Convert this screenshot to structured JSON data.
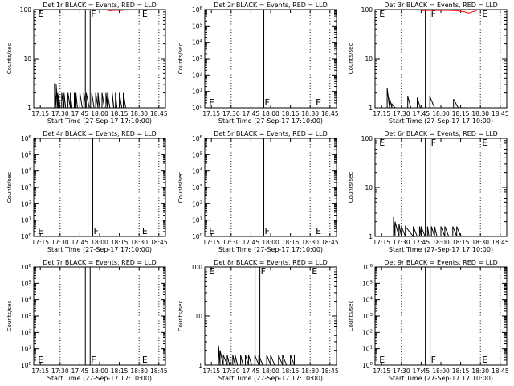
{
  "colors": {
    "events": "#000000",
    "lld": "#ff0000",
    "background": "#ffffff"
  },
  "chart_data": [
    {
      "type": "line",
      "title": "Det 1r  BLACK = Events, RED = LLD",
      "xlabel": "Start Time (27-Sep-17 17:10:00)",
      "ylabel": "Counts/sec",
      "xticks": [
        "17:15",
        "17:30",
        "17:45",
        "18:00",
        "18:15",
        "18:30",
        "18:45"
      ],
      "yscale": "log",
      "ylim": [
        1,
        100
      ],
      "yticks": [
        "1",
        "10",
        "100"
      ],
      "markers": [
        {
          "label": "E",
          "time": "17:12"
        },
        {
          "label": "F",
          "time": "17:51"
        },
        {
          "label": "E",
          "time": "18:31"
        }
      ],
      "events": [
        [
          17.43,
          3.2
        ],
        [
          17.43,
          2.6
        ],
        [
          17.45,
          3.0
        ],
        [
          17.47,
          2.0
        ],
        [
          17.48,
          1.8
        ],
        [
          17.5,
          1.0
        ],
        [
          17.52,
          2.0
        ],
        [
          17.55,
          2.0
        ],
        [
          17.57,
          1.0
        ],
        [
          17.6,
          2.0
        ],
        [
          17.63,
          2.0
        ],
        [
          17.65,
          1.0
        ],
        [
          17.68,
          2.0
        ],
        [
          17.7,
          2.0
        ],
        [
          17.72,
          1.0
        ],
        [
          17.75,
          2.0
        ],
        [
          17.78,
          1.0
        ],
        [
          17.8,
          2.0
        ],
        [
          17.83,
          2.0
        ],
        [
          17.87,
          1.0
        ],
        [
          17.9,
          2.0
        ],
        [
          17.93,
          1.0
        ],
        [
          17.95,
          2.0
        ],
        [
          17.98,
          2.0
        ],
        [
          18.0,
          1.0
        ],
        [
          18.03,
          2.0
        ],
        [
          18.06,
          1.0
        ],
        [
          18.08,
          2.0
        ],
        [
          18.1,
          2.0
        ],
        [
          18.13,
          1.0
        ],
        [
          18.16,
          2.0
        ],
        [
          18.18,
          1.0
        ],
        [
          18.2,
          2.0
        ],
        [
          18.22,
          1.0
        ],
        [
          18.25,
          2.0
        ],
        [
          18.28,
          1.0
        ],
        [
          18.3,
          2.0
        ],
        [
          18.33,
          1.0
        ]
      ],
      "lld": [
        [
          18.1,
          100
        ],
        [
          18.14,
          95
        ],
        [
          18.18,
          100
        ],
        [
          18.22,
          97
        ],
        [
          18.26,
          100
        ],
        [
          18.3,
          100
        ]
      ]
    },
    {
      "type": "line",
      "title": "Det 2r  BLACK = Events, RED = LLD",
      "xlabel": "Start Time (27-Sep-17 17:10:00)",
      "ylabel": "Counts/sec",
      "xticks": [
        "17:15",
        "17:30",
        "17:45",
        "18:00",
        "18:15",
        "18:30",
        "18:45"
      ],
      "yscale": "log",
      "ylim": [
        1,
        1000000
      ],
      "yticks": [
        "10^0",
        "10^1",
        "10^2",
        "10^3",
        "10^4",
        "10^5",
        "10^6"
      ],
      "markers": [
        {
          "label": "E",
          "time": "17:12"
        },
        {
          "label": "F",
          "time": "17:53"
        },
        {
          "label": "E",
          "time": "18:33"
        }
      ],
      "events": [],
      "lld": []
    },
    {
      "type": "line",
      "title": "Det 3r  BLACK = Events, RED = LLD",
      "xlabel": "Start Time (27-Sep-17 17:10:00)",
      "ylabel": "Counts/sec",
      "xticks": [
        "17:15",
        "17:30",
        "17:45",
        "18:00",
        "18:15",
        "18:30",
        "18:45"
      ],
      "yscale": "log",
      "ylim": [
        1,
        100
      ],
      "yticks": [
        "1",
        "10",
        "100"
      ],
      "markers": [
        {
          "label": "E",
          "time": "17:12"
        },
        {
          "label": "F",
          "time": "17:50"
        },
        {
          "label": "E",
          "time": "18:30"
        }
      ],
      "events": [
        [
          17.32,
          2.5
        ],
        [
          17.35,
          1.6
        ],
        [
          17.38,
          1.2
        ],
        [
          17.42,
          1.0
        ],
        [
          17.55,
          1.0
        ],
        [
          17.58,
          1.7
        ],
        [
          17.62,
          1.0
        ],
        [
          17.66,
          1.0
        ],
        [
          17.7,
          1.6
        ],
        [
          17.74,
          1.0
        ],
        [
          17.8,
          1.0
        ],
        [
          17.86,
          1.7
        ],
        [
          17.92,
          1.0
        ],
        [
          17.98,
          1.0
        ],
        [
          18.04,
          1.0
        ],
        [
          18.1,
          1.0
        ],
        [
          18.16,
          1.5
        ],
        [
          18.22,
          1.0
        ],
        [
          18.28,
          1.0
        ],
        [
          18.34,
          1.0
        ],
        [
          18.4,
          1.0
        ],
        [
          18.5,
          1.0
        ]
      ],
      "lld": [
        [
          17.75,
          100
        ],
        [
          17.8,
          95
        ],
        [
          17.85,
          98
        ],
        [
          17.9,
          100
        ],
        [
          18.1,
          100
        ],
        [
          18.2,
          95
        ],
        [
          18.3,
          90
        ],
        [
          18.35,
          85
        ],
        [
          18.4,
          90
        ],
        [
          18.45,
          95
        ]
      ]
    },
    {
      "type": "line",
      "title": "Det 4r  BLACK = Events, RED = LLD",
      "xlabel": "Start Time (27-Sep-17 17:10:00)",
      "ylabel": "Counts/sec",
      "xticks": [
        "17:15",
        "17:30",
        "17:45",
        "18:00",
        "18:15",
        "18:30",
        "18:45"
      ],
      "yscale": "log",
      "ylim": [
        1,
        1000000
      ],
      "yticks": [
        "10^0",
        "10^1",
        "10^2",
        "10^3",
        "10^4",
        "10^5",
        "10^6"
      ],
      "markers": [
        {
          "label": "E",
          "time": "17:12"
        },
        {
          "label": "F",
          "time": "17:53"
        },
        {
          "label": "E",
          "time": "18:31"
        }
      ],
      "events": [],
      "lld": []
    },
    {
      "type": "line",
      "title": "Det 5r  BLACK = Events, RED = LLD",
      "xlabel": "Start Time (27-Sep-17 17:10:00)",
      "ylabel": "Counts/sec",
      "xticks": [
        "17:15",
        "17:30",
        "17:45",
        "18:00",
        "18:15",
        "18:30",
        "18:45"
      ],
      "yscale": "log",
      "ylim": [
        1,
        1000000
      ],
      "yticks": [
        "10^0",
        "10^1",
        "10^2",
        "10^3",
        "10^4",
        "10^5",
        "10^6"
      ],
      "markers": [
        {
          "label": "E",
          "time": "17:12"
        },
        {
          "label": "F",
          "time": "17:53"
        },
        {
          "label": "E",
          "time": "18:33"
        }
      ],
      "events": [],
      "lld": []
    },
    {
      "type": "line",
      "title": "Det 6r  BLACK = Events, RED = LLD",
      "xlabel": "Start Time (27-Sep-17 17:10:00)",
      "ylabel": "Counts/sec",
      "xticks": [
        "17:15",
        "17:30",
        "17:45",
        "18:00",
        "18:15",
        "18:30",
        "18:45"
      ],
      "yscale": "log",
      "ylim": [
        1,
        100
      ],
      "yticks": [
        "1",
        "10",
        "100"
      ],
      "markers": [
        {
          "label": "E",
          "time": "17:12"
        },
        {
          "label": "F",
          "time": "17:50"
        },
        {
          "label": "E",
          "time": "18:30"
        }
      ],
      "events": [
        [
          17.4,
          2.5
        ],
        [
          17.42,
          2.0
        ],
        [
          17.47,
          1.8
        ],
        [
          17.5,
          1.6
        ],
        [
          17.55,
          1.6
        ],
        [
          17.65,
          1.6
        ],
        [
          17.7,
          1.0
        ],
        [
          17.73,
          1.6
        ],
        [
          17.75,
          1.6
        ],
        [
          17.8,
          1.0
        ],
        [
          17.83,
          1.6
        ],
        [
          17.85,
          1.0
        ],
        [
          17.88,
          1.6
        ],
        [
          17.92,
          1.6
        ],
        [
          17.95,
          1.0
        ],
        [
          18.0,
          1.6
        ],
        [
          18.05,
          1.6
        ],
        [
          18.1,
          1.0
        ],
        [
          18.15,
          1.6
        ],
        [
          18.2,
          1.6
        ],
        [
          18.25,
          1.0
        ]
      ],
      "lld": []
    },
    {
      "type": "line",
      "title": "Det 7r  BLACK = Events, RED = LLD",
      "xlabel": "Start Time (27-Sep-17 17:10:00)",
      "ylabel": "Counts/sec",
      "xticks": [
        "17:15",
        "17:30",
        "17:45",
        "18:00",
        "18:15",
        "18:30",
        "18:45"
      ],
      "yscale": "log",
      "ylim": [
        1,
        1000000
      ],
      "yticks": [
        "10^0",
        "10^1",
        "10^2",
        "10^3",
        "10^4",
        "10^5",
        "10^6"
      ],
      "markers": [
        {
          "label": "E",
          "time": "17:12"
        },
        {
          "label": "F",
          "time": "17:51"
        },
        {
          "label": "E",
          "time": "18:31"
        }
      ],
      "events": [],
      "lld": []
    },
    {
      "type": "line",
      "title": "Det 8r  BLACK = Events, RED = LLD",
      "xlabel": "Start Time (27-Sep-17 17:10:00)",
      "ylabel": "Counts/sec",
      "xticks": [
        "17:15",
        "17:30",
        "17:45",
        "18:00",
        "18:15",
        "18:30",
        "18:45"
      ],
      "yscale": "log",
      "ylim": [
        1,
        100
      ],
      "yticks": [
        "1",
        "10",
        "100"
      ],
      "markers": [
        {
          "label": "E",
          "time": "17:12"
        },
        {
          "label": "F",
          "time": "17:50"
        },
        {
          "label": "E",
          "time": "18:30"
        }
      ],
      "events": [
        [
          17.34,
          2.5
        ],
        [
          17.36,
          2.0
        ],
        [
          17.4,
          1.6
        ],
        [
          17.45,
          1.6
        ],
        [
          17.48,
          1.0
        ],
        [
          17.52,
          1.6
        ],
        [
          17.55,
          1.6
        ],
        [
          17.58,
          1.0
        ],
        [
          17.62,
          1.6
        ],
        [
          17.65,
          1.0
        ],
        [
          17.68,
          1.6
        ],
        [
          17.72,
          1.6
        ],
        [
          17.76,
          1.0
        ],
        [
          17.8,
          1.6
        ],
        [
          17.85,
          1.6
        ],
        [
          17.9,
          1.0
        ],
        [
          17.95,
          1.6
        ],
        [
          18.0,
          1.6
        ],
        [
          18.05,
          1.0
        ],
        [
          18.1,
          1.6
        ],
        [
          18.15,
          1.6
        ],
        [
          18.2,
          1.0
        ],
        [
          18.25,
          1.6
        ],
        [
          18.3,
          1.6
        ]
      ],
      "lld": []
    },
    {
      "type": "line",
      "title": "Det 9r  BLACK = Events, RED = LLD",
      "xlabel": "Start Time (27-Sep-17 17:10:00)",
      "ylabel": "Counts/sec",
      "xticks": [
        "17:15",
        "17:30",
        "17:45",
        "18:00",
        "18:15",
        "18:30",
        "18:45"
      ],
      "yscale": "log",
      "ylim": [
        1,
        1000000
      ],
      "yticks": [
        "10^0",
        "10^1",
        "10^2",
        "10^3",
        "10^4",
        "10^5",
        "10^6"
      ],
      "markers": [
        {
          "label": "E",
          "time": "17:12"
        },
        {
          "label": "F",
          "time": "17:50"
        },
        {
          "label": "E",
          "time": "18:30"
        }
      ],
      "events": [],
      "lld": []
    }
  ]
}
